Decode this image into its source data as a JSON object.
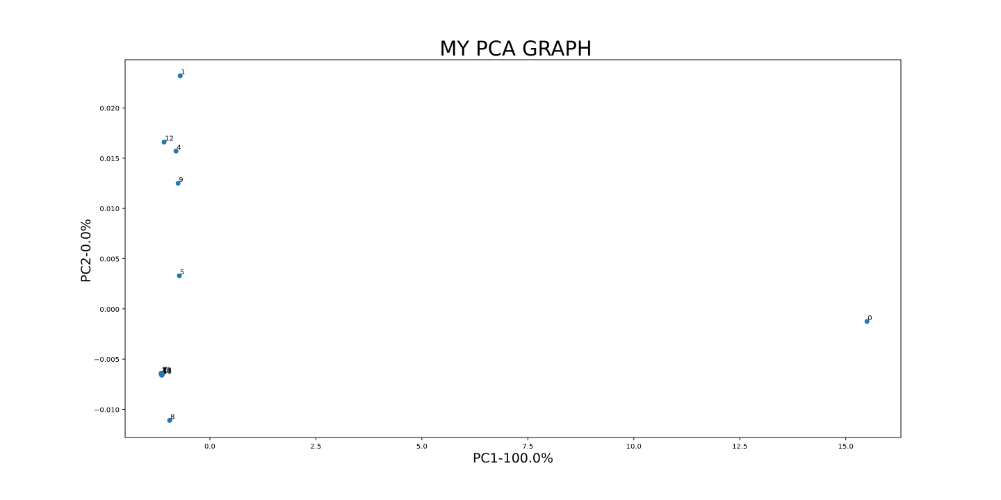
{
  "chart_data": {
    "type": "scatter",
    "title": "MY PCA GRAPH",
    "xlabel": "PC1-100.0%",
    "ylabel": "PC2-0.0%",
    "xlim": [
      -2.0,
      16.3
    ],
    "ylim": [
      -0.0128,
      0.0248
    ],
    "xticks": [
      0.0,
      2.5,
      5.0,
      7.5,
      10.0,
      12.5,
      15.0
    ],
    "xtick_labels": [
      "0.0",
      "2.5",
      "5.0",
      "7.5",
      "10.0",
      "12.5",
      "15.0"
    ],
    "yticks": [
      -0.01,
      -0.005,
      0.0,
      0.005,
      0.01,
      0.015,
      0.02
    ],
    "ytick_labels": [
      "−0.010",
      "−0.005",
      "0.000",
      "0.005",
      "0.010",
      "0.015",
      "0.020"
    ],
    "grid": false,
    "legend": "none",
    "marker_color": "#1f77b4",
    "points": [
      {
        "label": "0",
        "x": 15.5,
        "y": -0.00125
      },
      {
        "label": "1",
        "x": -0.7,
        "y": 0.0232
      },
      {
        "label": "12",
        "x": -1.08,
        "y": 0.0166
      },
      {
        "label": "4",
        "x": -0.8,
        "y": 0.0157
      },
      {
        "label": "9",
        "x": -0.75,
        "y": 0.0125
      },
      {
        "label": "5",
        "x": -0.72,
        "y": 0.0033
      },
      {
        "label": "8",
        "x": -0.95,
        "y": -0.0111
      },
      {
        "label": "2",
        "x": -1.15,
        "y": -0.0064
      },
      {
        "label": "3",
        "x": -1.13,
        "y": -0.0065
      },
      {
        "label": "6",
        "x": -1.14,
        "y": -0.0066
      },
      {
        "label": "7",
        "x": -1.12,
        "y": -0.0064
      },
      {
        "label": "10",
        "x": -1.15,
        "y": -0.0065
      },
      {
        "label": "11",
        "x": -1.13,
        "y": -0.0066
      },
      {
        "label": "13",
        "x": -1.14,
        "y": -0.0064
      },
      {
        "label": "14",
        "x": -1.12,
        "y": -0.0065
      }
    ]
  }
}
